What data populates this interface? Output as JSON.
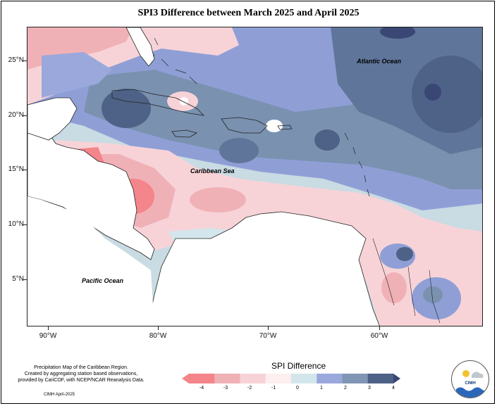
{
  "title": "SPI3 Difference between March 2025 and April 2025",
  "map": {
    "lat_ticks": [
      "25°N",
      "20°N",
      "15°N",
      "10°N",
      "5°N"
    ],
    "lon_ticks": [
      "90°W",
      "80°W",
      "70°W",
      "60°W"
    ],
    "labels": {
      "atlantic": "Atlantic Ocean",
      "caribbean": "Caribbean Sea",
      "pacific": "Pacific Ocean"
    }
  },
  "legend": {
    "title": "SPI Difference",
    "ticks": [
      "-4",
      "-3",
      "-2",
      "-1",
      "0",
      "1",
      "2",
      "3",
      "4"
    ],
    "colors": [
      "#f4858a",
      "#f0b1b6",
      "#f7d3d8",
      "#fdeef0",
      "#d3e6ec",
      "#9aa8dc",
      "#8096b4",
      "#4d6286"
    ]
  },
  "footnote": {
    "line1": "Precipitation Map of the Caribbean Region.",
    "line2": "Created by aggregating station based observations,",
    "line3": "provided by CariCOF, with NCEP/NCAR Reanalysis Data.",
    "credit": "CIMH April-2025"
  },
  "logo": {
    "text": "CIMH"
  }
}
